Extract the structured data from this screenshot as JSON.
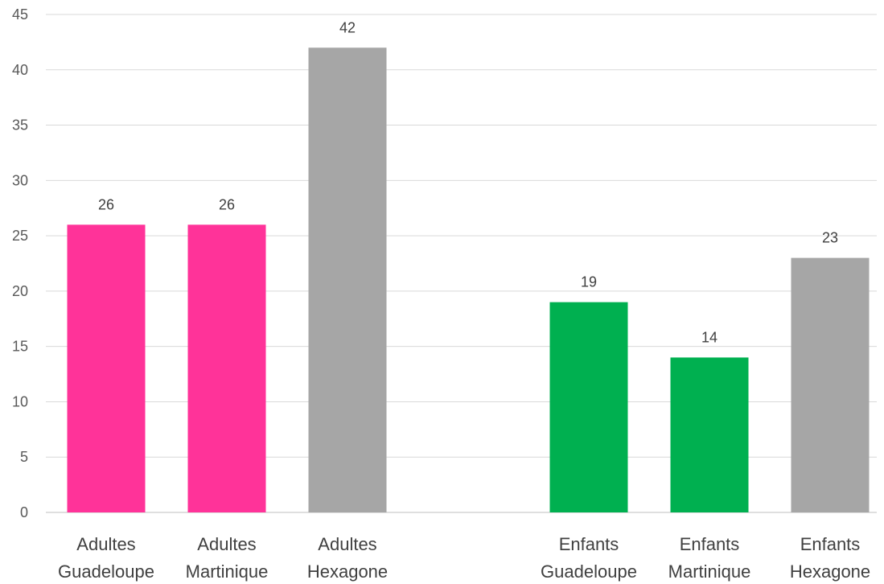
{
  "chart_data": {
    "type": "bar",
    "title": "",
    "xlabel": "",
    "ylabel": "",
    "ylim": [
      0,
      45
    ],
    "yticks": [
      0,
      5,
      10,
      15,
      20,
      25,
      30,
      35,
      40,
      45
    ],
    "grid": true,
    "legend": "none",
    "categories": [
      {
        "line1": "Adultes",
        "line2": "Guadeloupe"
      },
      {
        "line1": "Adultes",
        "line2": "Martinique"
      },
      {
        "line1": "Adultes",
        "line2": "Hexagone"
      },
      {
        "line1": "",
        "line2": ""
      },
      {
        "line1": "Enfants",
        "line2": "Guadeloupe"
      },
      {
        "line1": "Enfants",
        "line2": "Martinique"
      },
      {
        "line1": "Enfants",
        "line2": "Hexagone"
      }
    ],
    "values": [
      26,
      26,
      42,
      null,
      19,
      14,
      23
    ],
    "data_labels": [
      "26",
      "26",
      "42",
      "",
      "19",
      "14",
      "23"
    ],
    "bar_colors": [
      "#ff3399",
      "#ff3399",
      "#a6a6a6",
      "",
      "#00b050",
      "#00b050",
      "#a6a6a6"
    ]
  }
}
